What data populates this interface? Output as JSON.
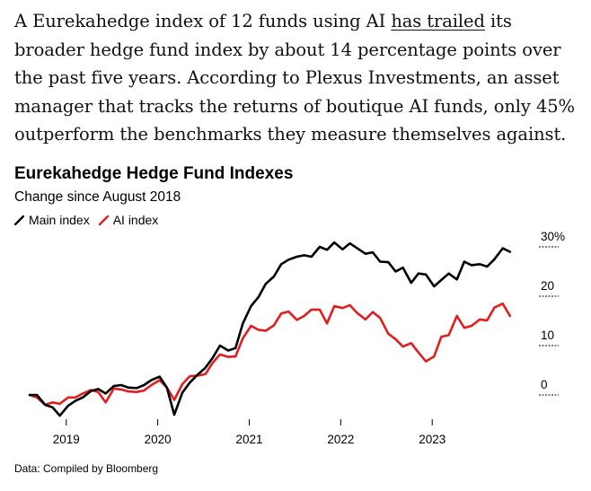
{
  "article": {
    "before_link": "A Eurekahedge index of 12 funds using AI ",
    "link_text": "has trailed",
    "after_link": " its broader hedge fund index by about 14 percentage points over the past five years. According to Plexus Investments, an asset manager that tracks the returns of boutique AI funds, only 45% outperform the benchmarks they measure themselves against."
  },
  "colors": {
    "main": "#000000",
    "ai": "#e11d1d"
  },
  "chart_data": {
    "type": "line",
    "title": "Eurekahedge Hedge Fund Indexes",
    "subtitle": "Change since August 2018",
    "xlabel": "",
    "ylabel": "",
    "xlim": [
      2018.6,
      2023.95
    ],
    "ylim": [
      -3,
      31
    ],
    "x_ticks": [
      {
        "value": 2019,
        "label": "2019"
      },
      {
        "value": 2020,
        "label": "2020"
      },
      {
        "value": 2021,
        "label": "2021"
      },
      {
        "value": 2022,
        "label": "2022"
      },
      {
        "value": 2023,
        "label": "2023"
      }
    ],
    "y_ticks": [
      {
        "value": 30,
        "label": "30%"
      },
      {
        "value": 20,
        "label": "20"
      },
      {
        "value": 10,
        "label": "10"
      },
      {
        "value": 0,
        "label": "0"
      }
    ],
    "legend": [
      "Main index",
      "AI index"
    ],
    "series": [
      {
        "name": "Main index",
        "x": [
          2018.6,
          2018.68,
          2018.77,
          2018.85,
          2018.93,
          2019.02,
          2019.1,
          2019.18,
          2019.27,
          2019.35,
          2019.43,
          2019.52,
          2019.6,
          2019.68,
          2019.77,
          2019.85,
          2019.93,
          2020.02,
          2020.1,
          2020.18,
          2020.27,
          2020.35,
          2020.43,
          2020.52,
          2020.6,
          2020.68,
          2020.77,
          2020.85,
          2020.93,
          2021.02,
          2021.1,
          2021.18,
          2021.27,
          2021.35,
          2021.43,
          2021.52,
          2021.6,
          2021.68,
          2021.77,
          2021.85,
          2021.93,
          2022.02,
          2022.1,
          2022.18,
          2022.27,
          2022.35,
          2022.43,
          2022.52,
          2022.6,
          2022.68,
          2022.77,
          2022.85,
          2022.93,
          2023.02,
          2023.1,
          2023.18,
          2023.27,
          2023.35,
          2023.43,
          2023.52,
          2023.6,
          2023.68,
          2023.77,
          2023.85
        ],
        "values": [
          0,
          0,
          -2,
          -2.5,
          -4.2,
          -2.2,
          -1.2,
          -0.5,
          0.8,
          1.2,
          0.3,
          1.8,
          2,
          1.5,
          1.4,
          2,
          3,
          3.7,
          1.5,
          -4,
          0.5,
          2.5,
          4,
          5.5,
          7.5,
          10,
          9,
          9.5,
          14.5,
          18,
          19.8,
          22.5,
          24,
          26.5,
          27.4,
          28,
          28.3,
          28,
          30,
          29.4,
          30.9,
          29.5,
          30.7,
          29.7,
          28.6,
          28.9,
          27,
          26.9,
          25,
          25.8,
          22.7,
          24.6,
          24.4,
          22,
          23.3,
          24.6,
          23.4,
          27,
          26.3,
          26.5,
          26,
          27.5,
          29.7,
          29
        ]
      },
      {
        "name": "AI index",
        "x": [
          2018.6,
          2018.68,
          2018.77,
          2018.85,
          2018.93,
          2019.02,
          2019.1,
          2019.18,
          2019.27,
          2019.35,
          2019.43,
          2019.52,
          2019.6,
          2019.68,
          2019.77,
          2019.85,
          2019.93,
          2020.02,
          2020.1,
          2020.18,
          2020.27,
          2020.35,
          2020.43,
          2020.52,
          2020.6,
          2020.68,
          2020.77,
          2020.85,
          2020.93,
          2021.02,
          2021.1,
          2021.18,
          2021.27,
          2021.35,
          2021.43,
          2021.52,
          2021.6,
          2021.68,
          2021.77,
          2021.85,
          2021.93,
          2022.02,
          2022.1,
          2022.18,
          2022.27,
          2022.35,
          2022.43,
          2022.52,
          2022.6,
          2022.68,
          2022.77,
          2022.85,
          2022.93,
          2023.02,
          2023.1,
          2023.18,
          2023.27,
          2023.35,
          2023.43,
          2023.52,
          2023.6,
          2023.68,
          2023.77,
          2023.85
        ],
        "values": [
          0,
          -0.5,
          -2,
          -1.5,
          -1.8,
          -0.5,
          -0.5,
          0.3,
          1,
          0.6,
          -1.5,
          1.3,
          1.1,
          0.7,
          0.6,
          0.9,
          2,
          3,
          1.5,
          -1,
          2.2,
          3.8,
          3.9,
          4.2,
          6.5,
          8.2,
          7.7,
          7.8,
          11.5,
          14,
          13.2,
          13,
          14.1,
          16.5,
          16.9,
          15.2,
          16,
          17.3,
          17.3,
          14.5,
          18,
          17.6,
          18.2,
          16.6,
          15.3,
          16.8,
          15.6,
          12.4,
          11.3,
          9.8,
          10.5,
          8.6,
          6.8,
          7.8,
          11.8,
          12.1,
          16,
          13.6,
          14,
          15.3,
          15.1,
          17.7,
          18.5,
          16
        ]
      }
    ]
  },
  "source": "Data: Compiled by Bloomberg"
}
